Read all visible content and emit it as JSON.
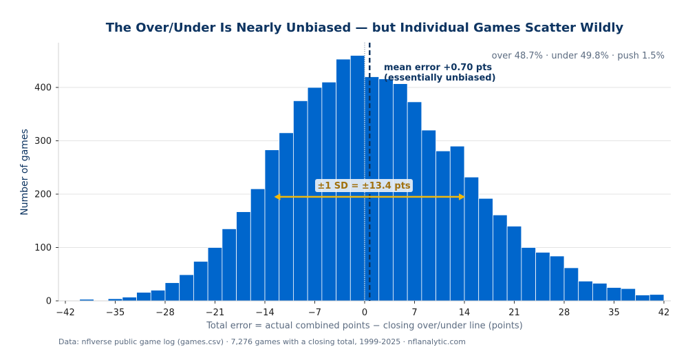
{
  "chart_data": {
    "type": "bar",
    "title": "The Over/Under Is Nearly Unbiased — but Individual Games Scatter Wildly",
    "xlabel": "Total error  =  actual combined points  −  closing over/under line  (points)",
    "ylabel": "Number of games",
    "xlim": [
      -42,
      42
    ],
    "ylim": [
      0,
      480
    ],
    "xticks": [
      -42,
      -35,
      -28,
      -21,
      -14,
      -7,
      0,
      7,
      14,
      21,
      28,
      35,
      42
    ],
    "xtick_labels": [
      "−42",
      "−35",
      "−28",
      "−21",
      "−14",
      "−7",
      "0",
      "7",
      "14",
      "21",
      "28",
      "35",
      "42"
    ],
    "yticks": [
      0,
      100,
      200,
      300,
      400
    ],
    "grid": "horizontal",
    "bin_width": 2,
    "bin_start": -40,
    "values": [
      3,
      1,
      4,
      7,
      16,
      20,
      34,
      49,
      74,
      100,
      135,
      167,
      210,
      283,
      315,
      375,
      400,
      410,
      453,
      460,
      420,
      416,
      407,
      373,
      320,
      281,
      290,
      232,
      192,
      161,
      140,
      100,
      91,
      84,
      62,
      37,
      33,
      25,
      23,
      11,
      12
    ],
    "mean": 0.7,
    "sd": 13.4,
    "colors": {
      "bars": "#0066cc",
      "mean_line": "#0d3461",
      "sd_arrow": "#f2b90c"
    },
    "annotations": {
      "mean_line1": "mean error +0.70 pts",
      "mean_line2": "(essentially unbiased)",
      "sd_label": "±1 SD = ±13.4 pts",
      "stats": "over 48.7%  ·  under 49.8%  ·  push 1.5%"
    },
    "source": "Data: nflverse public game log (games.csv) · 7,276 games with a closing total, 1999-2025 · nflanalytic.com"
  }
}
